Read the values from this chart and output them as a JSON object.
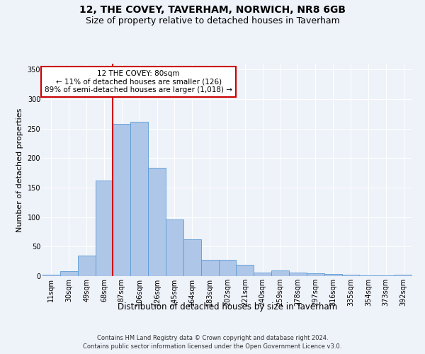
{
  "title": "12, THE COVEY, TAVERHAM, NORWICH, NR8 6GB",
  "subtitle": "Size of property relative to detached houses in Taverham",
  "xlabel": "Distribution of detached houses by size in Taverham",
  "ylabel": "Number of detached properties",
  "categories": [
    "11sqm",
    "30sqm",
    "49sqm",
    "68sqm",
    "87sqm",
    "106sqm",
    "126sqm",
    "145sqm",
    "164sqm",
    "183sqm",
    "202sqm",
    "221sqm",
    "240sqm",
    "259sqm",
    "278sqm",
    "297sqm",
    "316sqm",
    "335sqm",
    "354sqm",
    "373sqm",
    "392sqm"
  ],
  "values": [
    2,
    8,
    35,
    162,
    258,
    262,
    184,
    96,
    62,
    28,
    28,
    19,
    6,
    10,
    6,
    5,
    4,
    3,
    1,
    1,
    3
  ],
  "bar_color": "#aec6e8",
  "bar_edge_color": "#5b9bd5",
  "vline_x_index": 4,
  "vline_color": "#cc0000",
  "annotation_text": "12 THE COVEY: 80sqm\n← 11% of detached houses are smaller (126)\n89% of semi-detached houses are larger (1,018) →",
  "annotation_box_color": "#ffffff",
  "annotation_box_edge": "#cc0000",
  "ylim": [
    0,
    360
  ],
  "yticks": [
    0,
    50,
    100,
    150,
    200,
    250,
    300,
    350
  ],
  "footer1": "Contains HM Land Registry data © Crown copyright and database right 2024.",
  "footer2": "Contains public sector information licensed under the Open Government Licence v3.0.",
  "bg_color": "#eef2f9",
  "plot_bg_color": "#eef2f9",
  "title_fontsize": 10,
  "subtitle_fontsize": 9,
  "ylabel_fontsize": 8,
  "xlabel_fontsize": 8.5,
  "tick_fontsize": 7,
  "footer_fontsize": 6
}
